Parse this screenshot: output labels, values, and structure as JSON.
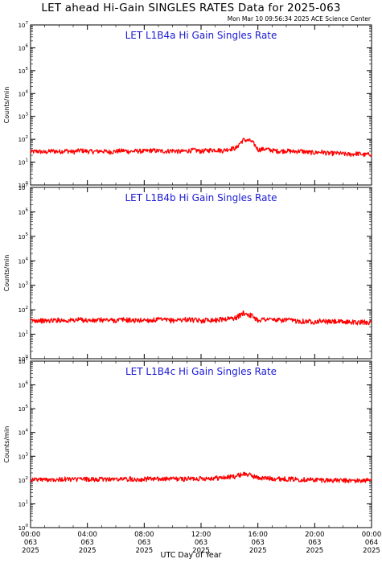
{
  "title": "LET ahead Hi-Gain SINGLES RATES Data for 2025-063",
  "timestamp": "Mon Mar 10 09:56:34 2025 ACE Science Center",
  "xlabel": "UTC Day of Year",
  "colors": {
    "series": "#ff0000",
    "panel_title": "#1a1ad6"
  },
  "chart_data": [
    {
      "type": "line",
      "title": "LET L1B4a Hi Gain Singles Rate",
      "ylabel": "Counts/min",
      "yscale": "log",
      "ylim": [
        1,
        10000000
      ],
      "yticks": [
        [
          "10",
          "0"
        ],
        [
          "10",
          "1"
        ],
        [
          "10",
          "2"
        ],
        [
          "10",
          "3"
        ],
        [
          "10",
          "4"
        ],
        [
          "10",
          "5"
        ],
        [
          "10",
          "6"
        ],
        [
          "10",
          "7"
        ]
      ],
      "xlim_hours": [
        0,
        24
      ],
      "grid": false,
      "series": [
        {
          "x_hours": [
            0,
            0.5,
            1,
            1.5,
            2,
            2.5,
            3,
            3.5,
            4,
            4.5,
            5,
            5.5,
            6,
            6.5,
            7,
            7.5,
            8,
            8.5,
            9,
            9.5,
            10,
            10.5,
            11,
            11.5,
            12,
            12.5,
            13,
            13.5,
            14,
            14.5,
            15,
            15.5,
            16,
            16.5,
            17,
            17.5,
            18,
            18.5,
            19,
            19.5,
            20,
            20.5,
            21,
            21.5,
            22,
            22.5,
            23,
            23.5,
            24
          ],
          "values": [
            28,
            30,
            27,
            31,
            29,
            32,
            28,
            33,
            30,
            29,
            31,
            28,
            30,
            32,
            29,
            31,
            30,
            33,
            31,
            30,
            32,
            29,
            31,
            34,
            30,
            33,
            35,
            32,
            38,
            42,
            95,
            85,
            35,
            38,
            33,
            30,
            32,
            29,
            31,
            27,
            26,
            28,
            24,
            25,
            23,
            22,
            24,
            21,
            23
          ]
        }
      ]
    },
    {
      "type": "line",
      "title": "LET L1B4b Hi Gain Singles Rate",
      "ylabel": "Counts/min",
      "yscale": "log",
      "ylim": [
        1,
        10000000
      ],
      "yticks": [
        [
          "10",
          "0"
        ],
        [
          "10",
          "1"
        ],
        [
          "10",
          "2"
        ],
        [
          "10",
          "3"
        ],
        [
          "10",
          "4"
        ],
        [
          "10",
          "5"
        ],
        [
          "10",
          "6"
        ],
        [
          "10",
          "7"
        ]
      ],
      "xlim_hours": [
        0,
        24
      ],
      "grid": false,
      "series": [
        {
          "x_hours": [
            0,
            0.5,
            1,
            1.5,
            2,
            2.5,
            3,
            3.5,
            4,
            4.5,
            5,
            5.5,
            6,
            6.5,
            7,
            7.5,
            8,
            8.5,
            9,
            9.5,
            10,
            10.5,
            11,
            11.5,
            12,
            12.5,
            13,
            13.5,
            14,
            14.5,
            15,
            15.5,
            16,
            16.5,
            17,
            17.5,
            18,
            18.5,
            19,
            19.5,
            20,
            20.5,
            21,
            21.5,
            22,
            22.5,
            23,
            23.5,
            24
          ],
          "values": [
            36,
            38,
            35,
            37,
            39,
            36,
            38,
            40,
            37,
            36,
            39,
            38,
            37,
            40,
            38,
            36,
            39,
            37,
            40,
            38,
            37,
            39,
            41,
            38,
            36,
            40,
            38,
            42,
            44,
            48,
            75,
            60,
            38,
            42,
            40,
            37,
            39,
            36,
            35,
            34,
            33,
            36,
            32,
            34,
            31,
            33,
            30,
            32,
            31
          ]
        }
      ]
    },
    {
      "type": "line",
      "title": "LET L1B4c Hi Gain Singles Rate",
      "ylabel": "Counts/min",
      "yscale": "log",
      "ylim": [
        1,
        10000000
      ],
      "yticks": [
        [
          "10",
          "0"
        ],
        [
          "10",
          "1"
        ],
        [
          "10",
          "2"
        ],
        [
          "10",
          "3"
        ],
        [
          "10",
          "4"
        ],
        [
          "10",
          "5"
        ],
        [
          "10",
          "6"
        ],
        [
          "10",
          "7"
        ]
      ],
      "xlim_hours": [
        0,
        24
      ],
      "grid": false,
      "series": [
        {
          "x_hours": [
            0,
            0.5,
            1,
            1.5,
            2,
            2.5,
            3,
            3.5,
            4,
            4.5,
            5,
            5.5,
            6,
            6.5,
            7,
            7.5,
            8,
            8.5,
            9,
            9.5,
            10,
            10.5,
            11,
            11.5,
            12,
            12.5,
            13,
            13.5,
            14,
            14.5,
            15,
            15.5,
            16,
            16.5,
            17,
            17.5,
            18,
            18.5,
            19,
            19.5,
            20,
            20.5,
            21,
            21.5,
            22,
            22.5,
            23,
            23.5,
            24
          ],
          "values": [
            105,
            108,
            104,
            110,
            107,
            112,
            106,
            109,
            111,
            105,
            108,
            112,
            107,
            110,
            113,
            109,
            111,
            114,
            110,
            112,
            115,
            111,
            113,
            116,
            118,
            120,
            123,
            126,
            135,
            150,
            185,
            160,
            125,
            120,
            118,
            115,
            113,
            110,
            108,
            106,
            104,
            102,
            100,
            98,
            96,
            95,
            94,
            97,
            100
          ]
        }
      ]
    }
  ],
  "xticks": [
    {
      "time": "00:00",
      "doy": "063",
      "year": "2025"
    },
    {
      "time": "04:00",
      "doy": "063",
      "year": "2025"
    },
    {
      "time": "08:00",
      "doy": "063",
      "year": "2025"
    },
    {
      "time": "12:00",
      "doy": "063",
      "year": "2025"
    },
    {
      "time": "16:00",
      "doy": "063",
      "year": "2025"
    },
    {
      "time": "20:00",
      "doy": "063",
      "year": "2025"
    },
    {
      "time": "00:00",
      "doy": "064",
      "year": "2025"
    }
  ]
}
